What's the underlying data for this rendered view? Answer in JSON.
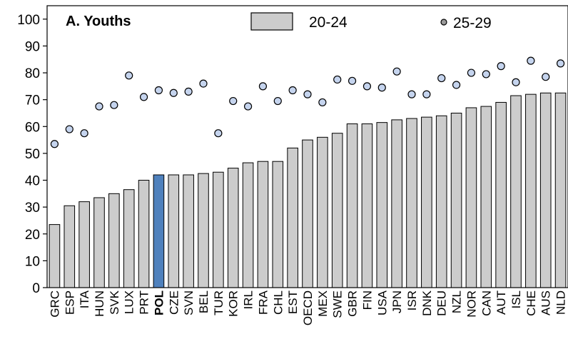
{
  "chart_data": {
    "type": "bar",
    "title": "A. Youths",
    "xlabel": "",
    "ylabel": "",
    "ylim": [
      0,
      105
    ],
    "yticks": [
      0,
      10,
      20,
      30,
      40,
      50,
      60,
      70,
      80,
      90,
      100
    ],
    "categories": [
      "GRC",
      "ESP",
      "ITA",
      "HUN",
      "SVK",
      "LUX",
      "PRT",
      "POL",
      "CZE",
      "SVN",
      "BEL",
      "TUR",
      "KOR",
      "IRL",
      "FRA",
      "CHL",
      "EST",
      "OECD",
      "MEX",
      "SWE",
      "GBR",
      "FIN",
      "USA",
      "JPN",
      "ISR",
      "DNK",
      "DEU",
      "NZL",
      "NOR",
      "CAN",
      "AUT",
      "ISL",
      "CHE",
      "AUS",
      "NLD"
    ],
    "highlight_category": "POL",
    "series": [
      {
        "name": "20-24",
        "kind": "bar",
        "color": "#cccccc",
        "highlight_color": "#4f81bd",
        "values": [
          23.5,
          30.5,
          32,
          33.5,
          35,
          36.5,
          40,
          42,
          42,
          42,
          42.5,
          43,
          44.5,
          46.5,
          47,
          47,
          52,
          55,
          56,
          57.5,
          61,
          61,
          61.5,
          62.5,
          63,
          63.5,
          64,
          65,
          67,
          67.5,
          69,
          71.5,
          72,
          72.5,
          72.5
        ]
      },
      {
        "name": "25-29",
        "kind": "scatter",
        "color": "#c5d4ee",
        "values": [
          53.5,
          59,
          57.5,
          67.5,
          68,
          79,
          71,
          73.5,
          72.5,
          73,
          76,
          57.5,
          69.5,
          67.5,
          75,
          69.5,
          73.5,
          72,
          69,
          77.5,
          77,
          75,
          74.5,
          80.5,
          72,
          72,
          78,
          75.5,
          80,
          79.5,
          82.5,
          76.5,
          84.5,
          78.5,
          83.5
        ]
      }
    ],
    "legend_position": "top",
    "grid": false
  }
}
